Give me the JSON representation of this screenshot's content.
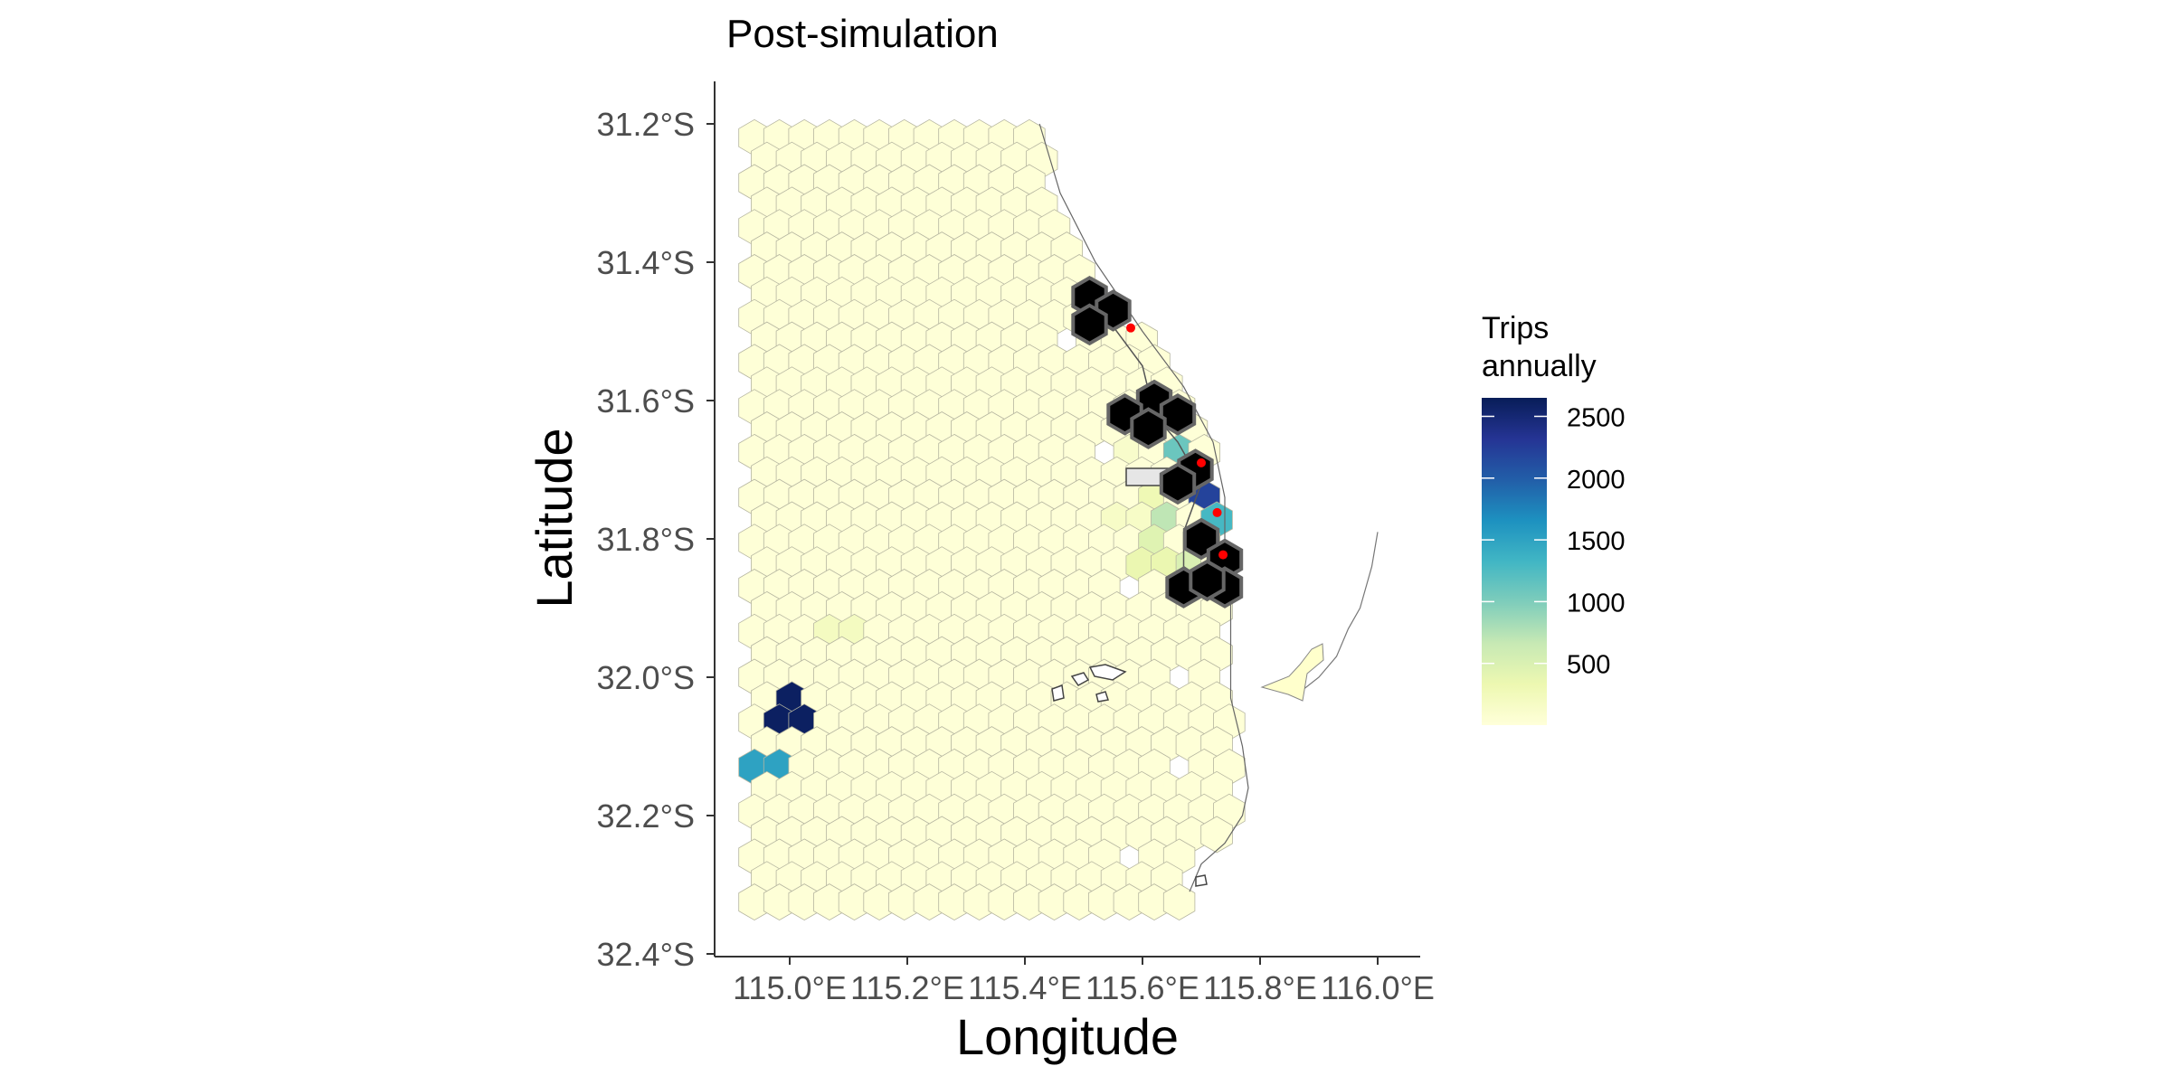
{
  "title": "Post-simulation",
  "x_axis": {
    "label": "Longitude",
    "ticks": [
      "115.0°E",
      "115.2°E",
      "115.4°E",
      "115.6°E",
      "115.8°E",
      "116.0°E"
    ],
    "tick_values": [
      115.0,
      115.2,
      115.4,
      115.6,
      115.8,
      116.0
    ]
  },
  "y_axis": {
    "label": "Latitude",
    "ticks": [
      "31.2°S",
      "31.4°S",
      "31.6°S",
      "31.8°S",
      "32.0°S",
      "32.2°S",
      "32.4°S"
    ],
    "tick_values": [
      -31.2,
      -31.4,
      -31.6,
      -31.8,
      -32.0,
      -32.2,
      -32.4
    ]
  },
  "legend": {
    "title_line1": "Trips",
    "title_line2": "annually",
    "ticks": [
      "2500",
      "2000",
      "1500",
      "1000",
      "500"
    ],
    "tick_values": [
      2500,
      2000,
      1500,
      1000,
      500
    ],
    "colors": [
      "#ffffd9",
      "#edf8b1",
      "#c7e9b4",
      "#7fcdbb",
      "#41b6c4",
      "#1d91c0",
      "#225ea8",
      "#253494",
      "#081d58"
    ],
    "range": [
      0,
      2650
    ],
    "placement": "right"
  },
  "chart_data": {
    "type": "heatmap",
    "title": "Post-simulation",
    "xlabel": "Longitude",
    "ylabel": "Latitude",
    "xlim": [
      114.9,
      116.05
    ],
    "ylim": [
      -32.4,
      -31.15
    ],
    "grid": false,
    "legend_title": "Trips annually",
    "cell_shape": "hexagon",
    "background_value": 20,
    "hex_grid": {
      "lon_min": 114.94,
      "lat_top": -31.22,
      "lon_step": 0.0425,
      "lat_step": 0.0325,
      "rows": 40
    },
    "highlighted_cells": [
      {
        "lon": 115.0,
        "lat": -32.05,
        "value": 2600
      },
      {
        "lon": 114.96,
        "lat": -32.12,
        "value": 1500
      },
      {
        "lon": 115.69,
        "lat": -31.74,
        "value": 2200
      },
      {
        "lon": 115.66,
        "lat": -31.67,
        "value": 1100
      },
      {
        "lon": 115.73,
        "lat": -31.76,
        "value": 1300
      },
      {
        "lon": 115.65,
        "lat": -31.77,
        "value": 700
      },
      {
        "lon": 115.63,
        "lat": -31.8,
        "value": 450
      },
      {
        "lon": 115.61,
        "lat": -31.74,
        "value": 300
      },
      {
        "lon": 115.62,
        "lat": -31.83,
        "value": 350
      },
      {
        "lon": 115.09,
        "lat": -31.94,
        "value": 200
      },
      {
        "lon": 115.67,
        "lat": -31.85,
        "value": 500
      },
      {
        "lon": 115.58,
        "lat": -31.77,
        "value": 150
      },
      {
        "lon": 115.59,
        "lat": -31.68,
        "value": 120
      }
    ],
    "closure_cells": [
      [
        115.51,
        -31.45
      ],
      [
        115.55,
        -31.47
      ],
      [
        115.51,
        -31.49
      ],
      [
        115.62,
        -31.6
      ],
      [
        115.57,
        -31.62
      ],
      [
        115.66,
        -31.62
      ],
      [
        115.61,
        -31.64
      ],
      [
        115.69,
        -31.7
      ],
      [
        115.66,
        -31.72
      ],
      [
        115.7,
        -31.8
      ],
      [
        115.74,
        -31.83
      ],
      [
        115.67,
        -31.87
      ],
      [
        115.74,
        -31.87
      ],
      [
        115.71,
        -31.86
      ]
    ],
    "red_points": [
      [
        115.58,
        -31.495
      ],
      [
        115.7,
        -31.69
      ],
      [
        115.727,
        -31.762
      ],
      [
        115.737,
        -31.823
      ]
    ]
  }
}
